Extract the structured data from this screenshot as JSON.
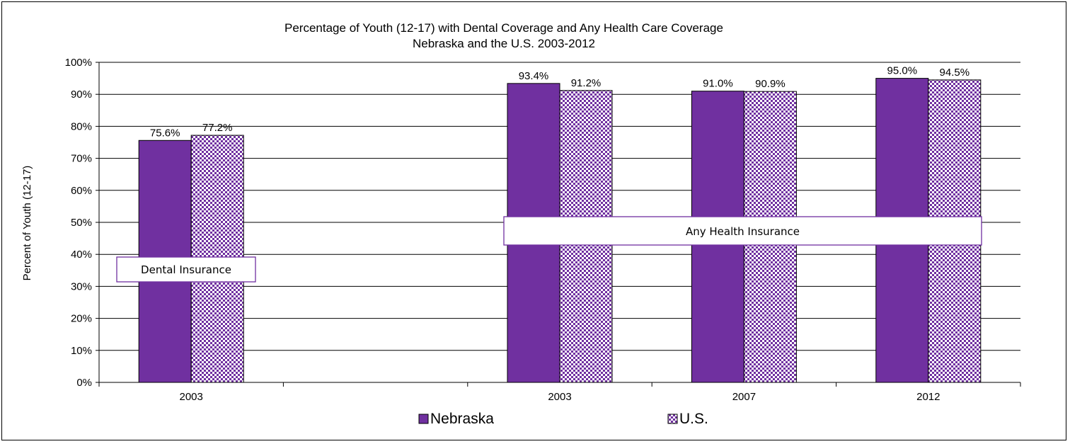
{
  "chart_data": {
    "type": "bar",
    "title": "Percentage of Youth (12-17) with Dental Coverage and Any Health Care Coverage",
    "subtitle": "Nebraska and the U.S. 2003-2012",
    "ylabel": "Percent of Youth (12-17)",
    "xlabel": "",
    "ylim": [
      0,
      100
    ],
    "yticks": [
      "0%",
      "10%",
      "20%",
      "30%",
      "40%",
      "50%",
      "60%",
      "70%",
      "80%",
      "90%",
      "100%"
    ],
    "grid": true,
    "legend_position": "bottom",
    "categories": [
      "2003",
      "",
      "2003",
      "2007",
      "2012"
    ],
    "series": [
      {
        "name": "Nebraska",
        "color": "#7030a0",
        "pattern": "solid",
        "values": [
          75.6,
          null,
          93.4,
          91.0,
          95.0
        ],
        "labels": [
          "75.6%",
          "",
          "93.4%",
          "91.0%",
          "95.0%"
        ]
      },
      {
        "name": "U.S.",
        "color": "#7030a0",
        "pattern": "dotted",
        "values": [
          77.2,
          null,
          91.2,
          90.9,
          94.5
        ],
        "labels": [
          "77.2%",
          "",
          "91.2%",
          "90.9%",
          "94.5%"
        ]
      }
    ],
    "annotations": [
      {
        "text": "Dental Insurance"
      },
      {
        "text": "Any Health Insurance"
      }
    ]
  }
}
